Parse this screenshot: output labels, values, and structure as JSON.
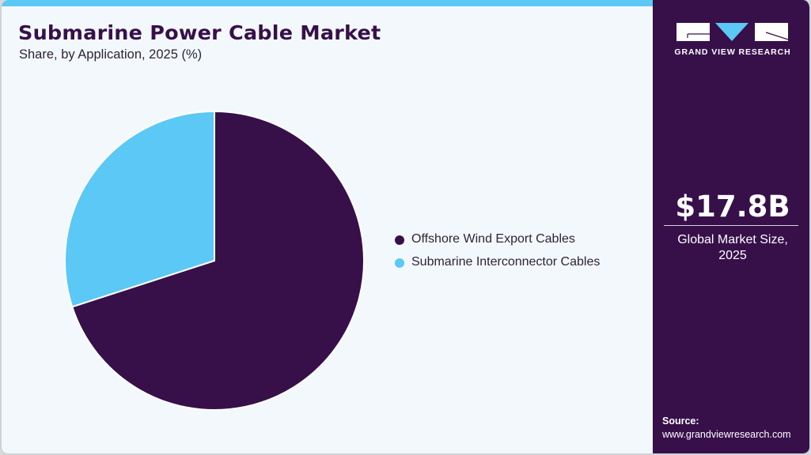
{
  "header": {
    "title": "Submarine Power Cable Market",
    "subtitle": "Share, by Application, 2025 (%)"
  },
  "colors": {
    "primary": "#37104a",
    "accent": "#5bc8f5",
    "background": "#f3f8fc"
  },
  "legend": {
    "items": [
      {
        "label": "Offshore Wind Export Cables",
        "color": "#37104a"
      },
      {
        "label": "Submarine Interconnector Cables",
        "color": "#5bc8f5"
      }
    ]
  },
  "sidebar": {
    "logo_text": "GRAND VIEW RESEARCH",
    "market_size": "$17.8B",
    "market_caption": "Global Market Size, 2025",
    "source_label": "Source:",
    "source_url": "www.grandviewresearch.com"
  },
  "chart_data": {
    "type": "pie",
    "title": "Submarine Power Cable Market",
    "subtitle": "Share, by Application, 2025 (%)",
    "categories": [
      "Offshore Wind Export Cables",
      "Submarine Interconnector Cables"
    ],
    "values": [
      70,
      30
    ],
    "colors": [
      "#37104a",
      "#5bc8f5"
    ],
    "start_angle": "12 o'clock, clockwise",
    "legend_position": "right",
    "data_labels": false
  }
}
